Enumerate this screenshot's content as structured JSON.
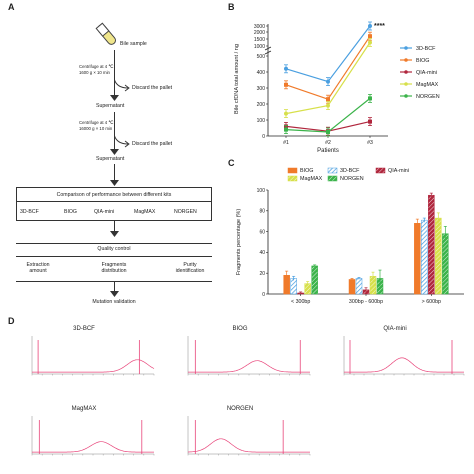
{
  "panel_labels": {
    "a": "A",
    "b": "B",
    "c": "C",
    "d": "D"
  },
  "flow": {
    "bile_sample": "Bile sample",
    "centrifuge1_line1": "Centrifuge at 4 ℃",
    "centrifuge1_line2": "1600 g × 10 min",
    "discard1": "Discard the pallet",
    "supernatant1": "Supernatant",
    "centrifuge2_line1": "Centrifuge at 4 ℃",
    "centrifuge2_line2": "16000 g × 10 min",
    "discard2": "Discard the pallet",
    "supernatant2": "Supernatant",
    "comparison": "Comparison of performance between different kits",
    "kits": [
      "3D-BCF",
      "BIOG",
      "QIA-mini",
      "MagMAX",
      "NORGEN"
    ],
    "quality_control": "Quality control",
    "qc_items": [
      {
        "l1": "Extraction",
        "l2": "amount"
      },
      {
        "l1": "Fragments",
        "l2": "distribution"
      },
      {
        "l1": "Purity",
        "l2": "identification"
      }
    ],
    "mutation": "Mutation validation"
  },
  "colors": {
    "3D-BCF": "#4a9fe0",
    "BIOG": "#f07a2a",
    "QIA-mini": "#b0263d",
    "MagMAX": "#d7e04a",
    "NORGEN": "#3bb34a",
    "trace": "#e8457a"
  },
  "chart_data": [
    {
      "type": "line",
      "ylabel": "Bile cfDNA total amount / ng",
      "xlabel": "Patients",
      "categories": [
        "#1",
        "#2",
        "#3"
      ],
      "y_ticks": [
        "0",
        "100",
        "200",
        "300",
        "400",
        "500",
        "1000",
        "1500",
        "2000",
        "3000"
      ],
      "significance": "****",
      "legend_position": "right",
      "series": [
        {
          "name": "3D-BCF",
          "values": [
            420,
            340,
            3000
          ]
        },
        {
          "name": "BIOG",
          "values": [
            320,
            230,
            1700
          ]
        },
        {
          "name": "QIA-mini",
          "values": [
            60,
            30,
            90
          ]
        },
        {
          "name": "MagMAX",
          "values": [
            140,
            190,
            1250
          ]
        },
        {
          "name": "NORGEN",
          "values": [
            40,
            25,
            235
          ]
        }
      ]
    },
    {
      "type": "bar",
      "ylabel": "Fragments percentage (%)",
      "categories": [
        "< 300bp",
        "300bp - 600bp",
        "> 600bp"
      ],
      "ylim": [
        0,
        100
      ],
      "y_ticks": [
        "0",
        "20",
        "40",
        "60",
        "80",
        "100"
      ],
      "legend_position": "top",
      "series": [
        {
          "name": "BIOG",
          "values": [
            18,
            14,
            68
          ],
          "err": [
            4,
            1,
            4
          ]
        },
        {
          "name": "3D-BCF",
          "values": [
            15,
            15,
            71
          ],
          "err": [
            2,
            1,
            2
          ]
        },
        {
          "name": "QIA-mini",
          "values": [
            1,
            4,
            95
          ],
          "err": [
            1,
            2,
            2
          ]
        },
        {
          "name": "MagMAX",
          "values": [
            10,
            17,
            73
          ],
          "err": [
            2,
            4,
            5
          ]
        },
        {
          "name": "NORGEN",
          "values": [
            27,
            15,
            58
          ],
          "err": [
            1,
            8,
            7
          ]
        }
      ]
    }
  ],
  "traces": {
    "titles": [
      "3D-BCF",
      "BIOG",
      "QIA-mini",
      "MagMAX",
      "NORGEN"
    ]
  }
}
